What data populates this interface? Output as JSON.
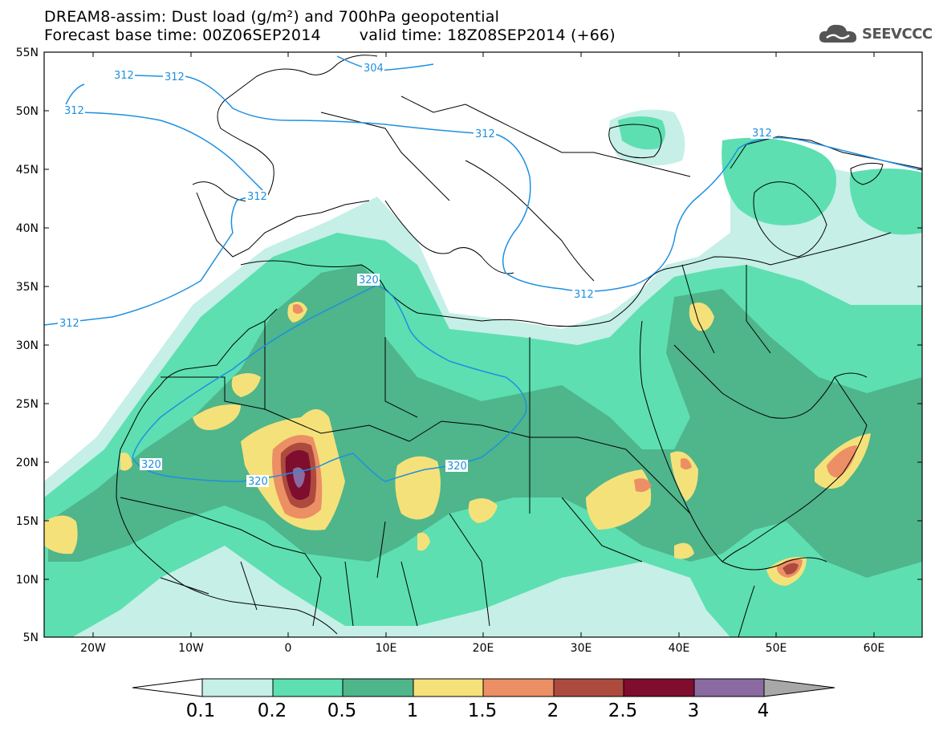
{
  "header": {
    "title_line1": "DREAM8-assim: Dust load (g/m²) and 700hPa geopotential",
    "base_time_label": "Forecast base time: 00Z06SEP2014",
    "valid_time_label": "valid time: 18Z08SEP2014 (+66)"
  },
  "logo": {
    "text": "SEEVCCC",
    "icon": "cloud-icon"
  },
  "axes": {
    "lat_labels": [
      "55N",
      "50N",
      "45N",
      "40N",
      "35N",
      "30N",
      "25N",
      "20N",
      "15N",
      "10N",
      "5N"
    ],
    "lon_labels": [
      "20W",
      "10W",
      "0",
      "10E",
      "20E",
      "30E",
      "40E",
      "50E",
      "60E"
    ]
  },
  "contours": {
    "labels_312": [
      "312",
      "312",
      "312",
      "312",
      "312",
      "312",
      "312"
    ],
    "label_304": "304",
    "labels_320": [
      "320",
      "320",
      "320",
      "320"
    ]
  },
  "colorbar": {
    "labels": [
      "0.1",
      "0.2",
      "0.5",
      "1",
      "1.5",
      "2",
      "2.5",
      "3",
      "4"
    ],
    "colors": [
      "#c5efe7",
      "#5ddfb1",
      "#4fb58b",
      "#f5e17a",
      "#ec8f65",
      "#ad4a3e",
      "#7e0d2e",
      "#8a6aa0",
      "#a8a8a8"
    ]
  },
  "colors": {
    "level_01": "#c5efe7",
    "level_02": "#5ddfb1",
    "level_05": "#4fb58b",
    "level_1": "#f5e17a",
    "level_15": "#ec8f65",
    "level_2": "#ad4a3e",
    "level_25": "#7e0d2e",
    "level_3": "#8a6aa0",
    "contour": "#1e90e0"
  }
}
